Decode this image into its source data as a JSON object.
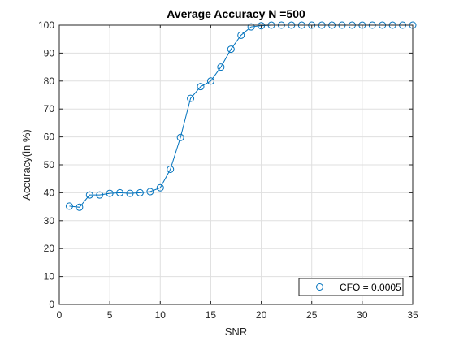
{
  "colors": {
    "series": "#0072bd",
    "grid": "#dfdfdf",
    "axis": "#262626",
    "background": "#ffffff"
  },
  "chart_data": {
    "type": "line",
    "title": "Average Accuracy N =500",
    "xlabel": "SNR",
    "ylabel": "Accuracy(in %)",
    "xlim": [
      0,
      35
    ],
    "ylim": [
      0,
      100
    ],
    "xticks": [
      0,
      5,
      10,
      15,
      20,
      25,
      30,
      35
    ],
    "yticks": [
      0,
      10,
      20,
      30,
      40,
      50,
      60,
      70,
      80,
      90,
      100
    ],
    "grid": true,
    "marker": "circle",
    "legend_position": "bottom-right",
    "series": [
      {
        "name": "CFO = 0.0005",
        "x": [
          1,
          2,
          3,
          4,
          5,
          6,
          7,
          8,
          9,
          10,
          11,
          12,
          13,
          14,
          15,
          16,
          17,
          18,
          19,
          20,
          21,
          22,
          23,
          24,
          25,
          26,
          27,
          28,
          29,
          30,
          31,
          32,
          33,
          34,
          35
        ],
        "y": [
          35.2,
          34.8,
          39.2,
          39.2,
          39.8,
          40.0,
          39.8,
          40.0,
          40.4,
          41.8,
          48.4,
          59.8,
          73.8,
          78.0,
          80.0,
          85.0,
          91.4,
          96.4,
          99.4,
          99.8,
          100,
          100,
          100,
          100,
          100,
          100,
          100,
          100,
          100,
          100,
          100,
          100,
          100,
          100,
          100
        ]
      }
    ]
  }
}
